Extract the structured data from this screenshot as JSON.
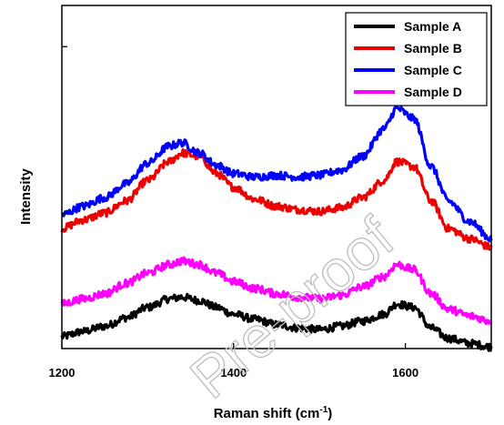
{
  "chart_data": {
    "type": "line",
    "xlabel_main": "Raman shift (cm",
    "xlabel_sup": "-1",
    "xlabel_end": ")",
    "ylabel": "Intensity",
    "xlim": [
      1200,
      1700
    ],
    "ylim": [
      0,
      10
    ],
    "x_ticks": [
      1200,
      1400,
      1600
    ],
    "y_ticks": [
      3.95,
      8.8
    ],
    "y_tick_labels": false,
    "grid": false,
    "legend_position": "top-right",
    "x": [
      1200,
      1225,
      1250,
      1275,
      1300,
      1325,
      1340,
      1360,
      1380,
      1400,
      1425,
      1450,
      1475,
      1500,
      1525,
      1550,
      1575,
      1590,
      1610,
      1630,
      1650,
      1675,
      1700
    ],
    "series": [
      {
        "name": "Sample A",
        "color": "#000000",
        "values": [
          0.35,
          0.5,
          0.65,
          0.9,
          1.2,
          1.45,
          1.5,
          1.4,
          1.2,
          1.0,
          0.85,
          0.7,
          0.6,
          0.55,
          0.65,
          0.8,
          1.0,
          1.3,
          1.2,
          0.6,
          0.3,
          0.15,
          0.05
        ]
      },
      {
        "name": "Sample B",
        "color": "#ee0000",
        "values": [
          3.5,
          3.75,
          3.95,
          4.3,
          4.9,
          5.45,
          5.7,
          5.6,
          5.1,
          4.7,
          4.35,
          4.15,
          4.05,
          4.0,
          4.1,
          4.4,
          4.9,
          5.45,
          5.3,
          4.3,
          3.5,
          3.2,
          2.95
        ]
      },
      {
        "name": "Sample C",
        "color": "#0000ff",
        "values": [
          3.9,
          4.15,
          4.4,
          4.8,
          5.4,
          5.9,
          6.0,
          5.7,
          5.35,
          5.1,
          5.0,
          5.05,
          5.0,
          5.05,
          5.2,
          5.6,
          6.4,
          7.0,
          6.7,
          5.3,
          4.3,
          3.7,
          3.2
        ]
      },
      {
        "name": "Sample D",
        "color": "#ff00ff",
        "values": [
          1.3,
          1.45,
          1.6,
          1.9,
          2.2,
          2.45,
          2.55,
          2.45,
          2.2,
          1.95,
          1.75,
          1.6,
          1.5,
          1.45,
          1.55,
          1.8,
          2.1,
          2.45,
          2.3,
          1.6,
          1.15,
          0.95,
          0.8
        ]
      }
    ],
    "watermark": "Pre-proof"
  }
}
